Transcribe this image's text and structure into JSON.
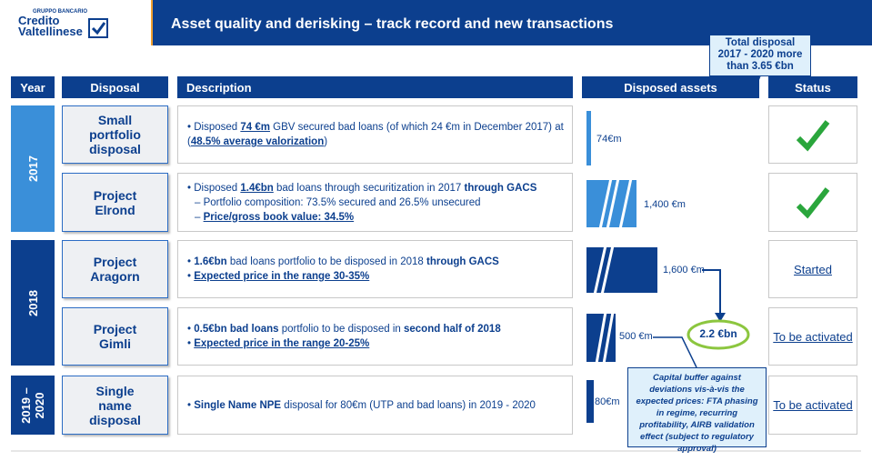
{
  "header": {
    "logo": {
      "group": "GRUPPO BANCARIO",
      "line1": "Credito",
      "line2": "Valtellinese"
    },
    "title": "Asset quality and derisking – track record and new transactions"
  },
  "callout": "Total disposal 2017 - 2020 more than 3.65 €bn",
  "table": {
    "columns": [
      "Year",
      "Disposal",
      "Description",
      "Disposed assets",
      "Status"
    ],
    "years": [
      "2017",
      "2018",
      "2019 – 2020"
    ],
    "rows": [
      {
        "disposal": "Small portfolio disposal",
        "description": [
          [
            "Disposed ",
            "74 €m",
            " GBV secured bad loans (of which 24 €m in December 2017) at (",
            "48.5% average valorization",
            ")"
          ]
        ],
        "asset": "74€m"
      },
      {
        "disposal": "Project Elrond",
        "description": [
          [
            "Disposed ",
            "1.4€bn",
            " bad loans through securitization in 2017 ",
            "through GACS"
          ],
          [
            "Portfolio composition: 73.5% secured and 26.5% unsecured"
          ],
          [
            "Price/gross book value: 34.5%"
          ]
        ],
        "asset": "1,400 €m"
      },
      {
        "disposal": "Project Aragorn",
        "description": [
          [
            "1.6€bn",
            " bad loans portfolio to be disposed in 2018 ",
            "through GACS"
          ],
          [
            "Expected price in the range 30-35%"
          ]
        ],
        "asset": "1,600 €m",
        "status": "Started"
      },
      {
        "disposal": "Project Gimli",
        "description": [
          [
            "0.5€bn bad loans",
            " portfolio to be disposed in ",
            "second half of 2018"
          ],
          [
            "Expected price in the range 20-25%"
          ]
        ],
        "asset": "500 €m",
        "status": "To be activated"
      },
      {
        "disposal": "Single name disposal",
        "description": [
          [
            "Single Name NPE",
            " disposal for 80€m (UTP and bad loans) in 2019 - 2020"
          ]
        ],
        "asset": "80€m",
        "status": "To be activated"
      }
    ]
  },
  "total": "2.2 €bn",
  "note": "Capital buffer against deviations vis-à-vis the expected prices: FTA phasing in regime, recurring profitability, AIRB validation effect (subject to regulatory approval)"
}
